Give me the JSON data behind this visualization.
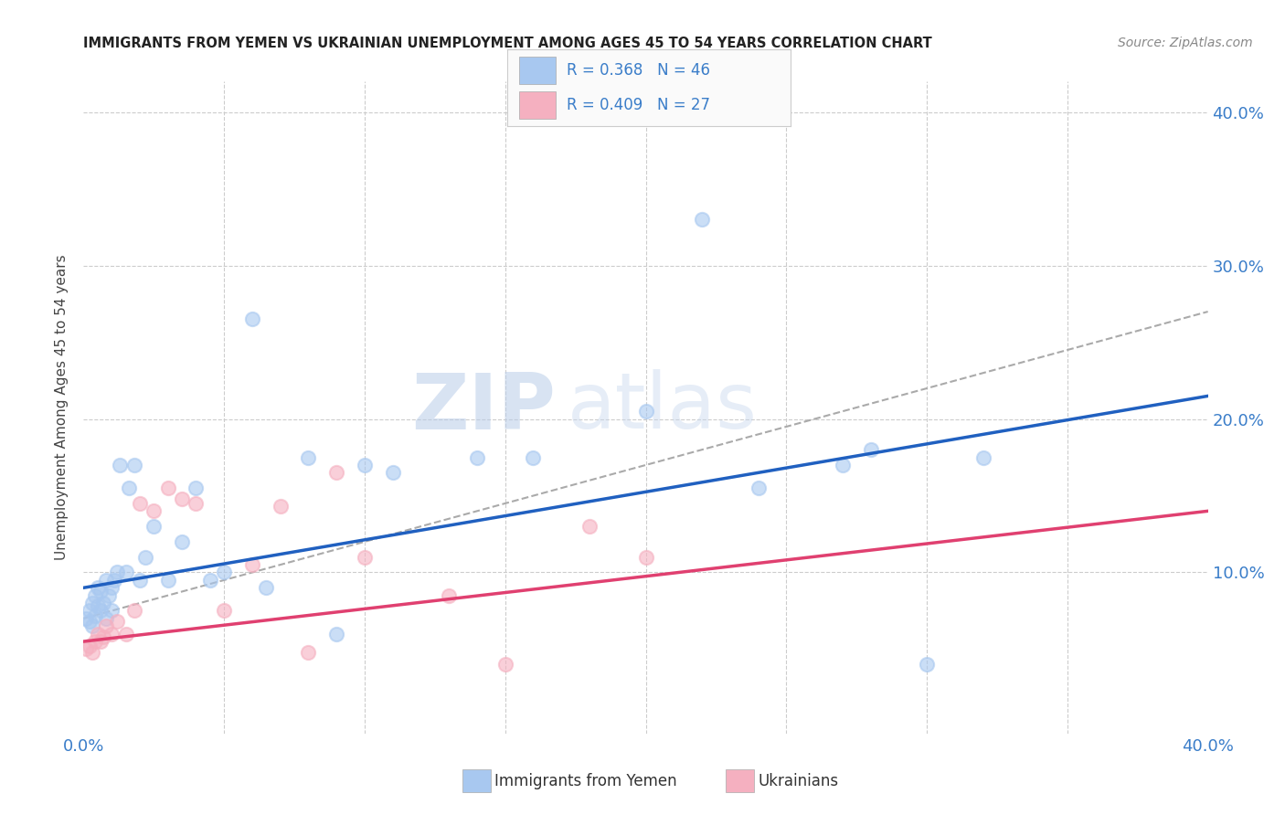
{
  "title": "IMMIGRANTS FROM YEMEN VS UKRAINIAN UNEMPLOYMENT AMONG AGES 45 TO 54 YEARS CORRELATION CHART",
  "source": "Source: ZipAtlas.com",
  "ylabel": "Unemployment Among Ages 45 to 54 years",
  "xlim": [
    0.0,
    0.4
  ],
  "ylim": [
    -0.005,
    0.42
  ],
  "blue_R": 0.368,
  "blue_N": 46,
  "pink_R": 0.409,
  "pink_N": 27,
  "blue_color": "#A8C8F0",
  "pink_color": "#F5B0C0",
  "blue_line_color": "#2060C0",
  "pink_line_color": "#E04070",
  "dashed_line_color": "#AAAAAA",
  "watermark_zip": "ZIP",
  "watermark_atlas": "atlas",
  "background_color": "#FFFFFF",
  "grid_color": "#CCCCCC",
  "blue_scatter_x": [
    0.001,
    0.002,
    0.002,
    0.003,
    0.003,
    0.004,
    0.004,
    0.005,
    0.005,
    0.006,
    0.006,
    0.007,
    0.008,
    0.008,
    0.009,
    0.01,
    0.01,
    0.011,
    0.012,
    0.013,
    0.015,
    0.016,
    0.018,
    0.02,
    0.022,
    0.025,
    0.03,
    0.035,
    0.04,
    0.045,
    0.05,
    0.06,
    0.065,
    0.08,
    0.09,
    0.1,
    0.11,
    0.14,
    0.16,
    0.2,
    0.22,
    0.24,
    0.27,
    0.28,
    0.3,
    0.32
  ],
  "blue_scatter_y": [
    0.07,
    0.068,
    0.075,
    0.065,
    0.08,
    0.072,
    0.085,
    0.078,
    0.09,
    0.075,
    0.088,
    0.08,
    0.095,
    0.07,
    0.085,
    0.09,
    0.075,
    0.095,
    0.1,
    0.17,
    0.1,
    0.155,
    0.17,
    0.095,
    0.11,
    0.13,
    0.095,
    0.12,
    0.155,
    0.095,
    0.1,
    0.265,
    0.09,
    0.175,
    0.06,
    0.17,
    0.165,
    0.175,
    0.175,
    0.205,
    0.33,
    0.155,
    0.17,
    0.18,
    0.04,
    0.175
  ],
  "pink_scatter_x": [
    0.001,
    0.002,
    0.003,
    0.004,
    0.005,
    0.006,
    0.007,
    0.008,
    0.01,
    0.012,
    0.015,
    0.018,
    0.02,
    0.025,
    0.03,
    0.035,
    0.04,
    0.05,
    0.06,
    0.07,
    0.08,
    0.09,
    0.1,
    0.13,
    0.15,
    0.18,
    0.2
  ],
  "pink_scatter_y": [
    0.05,
    0.052,
    0.048,
    0.055,
    0.06,
    0.055,
    0.058,
    0.065,
    0.06,
    0.068,
    0.06,
    0.075,
    0.145,
    0.14,
    0.155,
    0.148,
    0.145,
    0.075,
    0.105,
    0.143,
    0.048,
    0.165,
    0.11,
    0.085,
    0.04,
    0.13,
    0.11
  ],
  "blue_line_x0": 0.0,
  "blue_line_y0": 0.09,
  "blue_line_x1": 0.4,
  "blue_line_y1": 0.215,
  "pink_line_x0": 0.0,
  "pink_line_y0": 0.055,
  "pink_line_x1": 0.4,
  "pink_line_y1": 0.14,
  "dash_line_x0": 0.0,
  "dash_line_y0": 0.07,
  "dash_line_x1": 0.4,
  "dash_line_y1": 0.27
}
